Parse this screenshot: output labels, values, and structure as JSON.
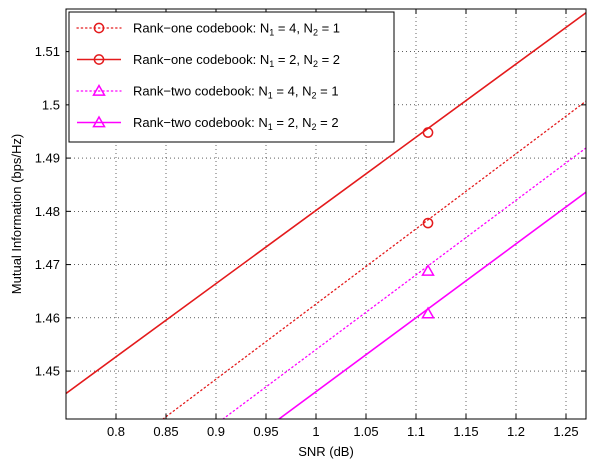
{
  "chart_data": {
    "type": "line",
    "xlabel": "SNR (dB)",
    "ylabel": "Mutual Information (bps/Hz)",
    "xlim": [
      0.75,
      1.27
    ],
    "ylim": [
      1.441,
      1.518
    ],
    "xticks": [
      0.8,
      0.85,
      0.9,
      0.95,
      1,
      1.05,
      1.1,
      1.15,
      1.2,
      1.25
    ],
    "xtick_labels": [
      "0.8",
      "0.85",
      "0.9",
      "0.95",
      "1",
      "1.05",
      "1.1",
      "1.15",
      "1.2",
      "1.25"
    ],
    "yticks": [
      1.45,
      1.46,
      1.47,
      1.48,
      1.49,
      1.5,
      1.51
    ],
    "ytick_labels": [
      "1.45",
      "1.46",
      "1.47",
      "1.48",
      "1.49",
      "1.5",
      "1.51"
    ],
    "grid": true,
    "legend_position": "top-left",
    "series": [
      {
        "name": "Rank−one codebook: N",
        "n1": "4",
        "n2": "1",
        "color": "#e41a1c",
        "linestyle": "dotted",
        "marker": "circle",
        "line_x": [
          0.847,
          1.27
        ],
        "line_y": [
          1.441,
          1.5007
        ],
        "marker_x": 1.112,
        "marker_y": 1.4778
      },
      {
        "name": "Rank−one codebook: N",
        "n1": "2",
        "n2": "2",
        "color": "#e41a1c",
        "linestyle": "solid",
        "marker": "circle",
        "line_x": [
          0.75,
          1.27
        ],
        "line_y": [
          1.4458,
          1.5173
        ],
        "marker_x": 1.112,
        "marker_y": 1.4948
      },
      {
        "name": "Rank−two codebook: N",
        "n1": "4",
        "n2": "1",
        "color": "#ff00ff",
        "linestyle": "dotted",
        "marker": "triangle",
        "line_x": [
          0.907,
          1.27
        ],
        "line_y": [
          1.441,
          1.4919
        ],
        "marker_x": 1.112,
        "marker_y": 1.4688
      },
      {
        "name": "Rank−two codebook: N",
        "n1": "2",
        "n2": "2",
        "color": "#ff00ff",
        "linestyle": "solid",
        "marker": "triangle",
        "line_x": [
          0.963,
          1.27
        ],
        "line_y": [
          1.441,
          1.4836
        ],
        "marker_x": 1.112,
        "marker_y": 1.4608
      }
    ]
  }
}
